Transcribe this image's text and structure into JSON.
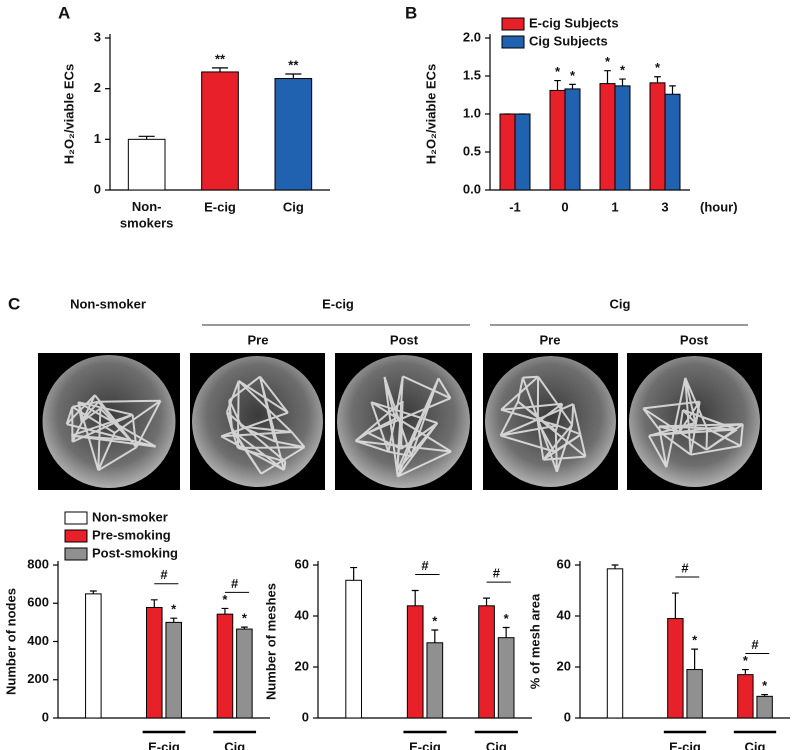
{
  "chart_data": [
    {
      "type": "bar",
      "panel": "A",
      "ylabel": "H₂O₂/viable ECs",
      "categories": [
        "Non-\nsmokers",
        "E-cig",
        "Cig"
      ],
      "values": [
        1.0,
        2.33,
        2.2
      ],
      "errors": [
        0.06,
        0.08,
        0.09
      ],
      "colors": [
        "#ffffff",
        "#e8202a",
        "#2162b0"
      ],
      "annotations": [
        null,
        "**",
        "**"
      ],
      "ylim": [
        0,
        3
      ],
      "yticks": [
        0,
        1,
        2,
        3
      ]
    },
    {
      "type": "bar",
      "panel": "B",
      "ylabel": "H₂O₂/viable ECs",
      "xlabel": "(hour)",
      "categories": [
        "-1",
        "0",
        "1",
        "3"
      ],
      "series": [
        {
          "name": "E-cig Subjects",
          "color": "#e8202a",
          "values": [
            1.0,
            1.31,
            1.4,
            1.41
          ],
          "errors": [
            0,
            0.13,
            0.17,
            0.08
          ],
          "annotations": [
            null,
            "*",
            "*",
            "*"
          ]
        },
        {
          "name": "Cig Subjects",
          "color": "#2162b0",
          "values": [
            1.0,
            1.33,
            1.37,
            1.26
          ],
          "errors": [
            0,
            0.06,
            0.09,
            0.11
          ],
          "annotations": [
            null,
            "*",
            "*",
            null
          ]
        }
      ],
      "ylim": [
        0,
        2
      ],
      "yticks": [
        {
          "value": 0,
          "label": "0.0"
        },
        0.5,
        {
          "value": 1,
          "label": "1.0"
        },
        1.5,
        {
          "value": 2,
          "label": "2.0"
        }
      ]
    },
    {
      "type": "bar",
      "ylabel": "Number of nodes",
      "categories": [
        null,
        "E-cig",
        "Cig"
      ],
      "series": [
        {
          "name": "Non-smoker",
          "color": "#ffffff",
          "values": [
            649,
            null,
            null
          ],
          "errors": [
            15,
            null,
            null
          ],
          "annotations": [
            null,
            null,
            null
          ]
        },
        {
          "name": "Pre-smoking",
          "color": "#e8202a",
          "values": [
            null,
            578,
            543
          ],
          "errors": [
            null,
            40,
            30
          ],
          "annotations": [
            null,
            null,
            "*"
          ]
        },
        {
          "name": "Post-smoking",
          "color": "#909090",
          "values": [
            null,
            500,
            465
          ],
          "errors": [
            null,
            22,
            10
          ],
          "annotations": [
            null,
            "*",
            "*"
          ]
        }
      ],
      "bracket_labels": [
        null,
        "#",
        "#"
      ],
      "ylim": [
        0,
        800
      ],
      "yticks": [
        0,
        200,
        400,
        600,
        800
      ]
    },
    {
      "type": "bar",
      "ylabel": "Number of meshes",
      "categories": [
        null,
        "E-cig",
        "Cig"
      ],
      "series": [
        {
          "color": "#ffffff",
          "values": [
            54,
            null,
            null
          ],
          "errors": [
            5,
            null,
            null
          ],
          "annotations": [
            null,
            null,
            null
          ]
        },
        {
          "color": "#e8202a",
          "values": [
            null,
            44,
            44
          ],
          "errors": [
            null,
            6,
            3
          ],
          "annotations": [
            null,
            null,
            null
          ]
        },
        {
          "color": "#909090",
          "values": [
            null,
            29.5,
            31.5
          ],
          "errors": [
            null,
            5,
            4
          ],
          "annotations": [
            null,
            "*",
            "*"
          ]
        }
      ],
      "bracket_labels": [
        null,
        "#",
        "#"
      ],
      "ylim": [
        0,
        60
      ],
      "yticks": [
        0,
        20,
        40,
        60
      ]
    },
    {
      "type": "bar",
      "ylabel": "% of mesh area",
      "categories": [
        null,
        "E-cig",
        "Cig"
      ],
      "series": [
        {
          "color": "#ffffff",
          "values": [
            58.5,
            null,
            null
          ],
          "errors": [
            1.5,
            null,
            null
          ],
          "annotations": [
            null,
            null,
            null
          ]
        },
        {
          "color": "#e8202a",
          "values": [
            null,
            39,
            17
          ],
          "errors": [
            null,
            10,
            2
          ],
          "annotations": [
            null,
            null,
            "*"
          ]
        },
        {
          "color": "#909090",
          "values": [
            null,
            19,
            8.5
          ],
          "errors": [
            null,
            8,
            0.7
          ],
          "annotations": [
            null,
            "*",
            "*"
          ]
        }
      ],
      "bracket_labels": [
        null,
        "#",
        "#"
      ],
      "ylim": [
        0,
        60
      ],
      "yticks": [
        0,
        20,
        40,
        60
      ]
    }
  ],
  "panel_c": {
    "letter": "C",
    "groups": [
      "Non-smoker",
      "E-cig",
      "Cig"
    ],
    "subgroups": [
      "Pre",
      "Post",
      "Pre",
      "Post"
    ]
  }
}
